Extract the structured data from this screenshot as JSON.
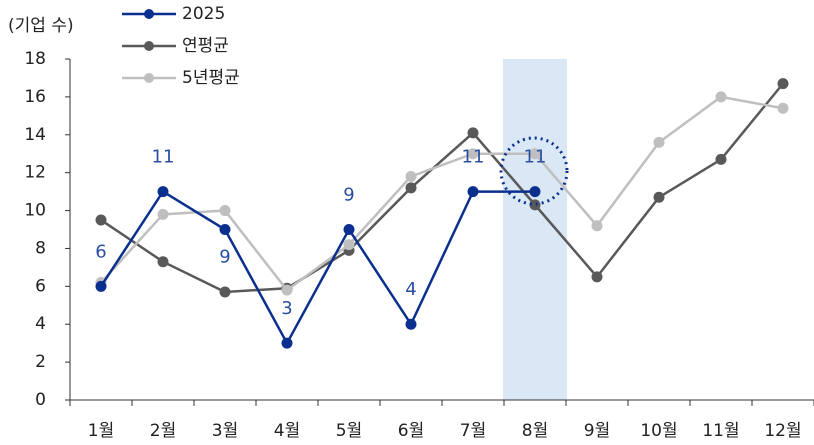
{
  "chart_data": {
    "type": "line",
    "y_label": "(기업 수)",
    "categories": [
      "1월",
      "2월",
      "3월",
      "4월",
      "5월",
      "6월",
      "7월",
      "8월",
      "9월",
      "10월",
      "11월",
      "12월"
    ],
    "series": [
      {
        "name": "2025",
        "color": "#0a2f8f",
        "values": [
          6,
          11,
          9,
          3,
          9,
          4,
          11,
          11,
          null,
          null,
          null,
          null
        ],
        "value_labels": [
          "6",
          "11",
          "9",
          "3",
          "9",
          "4",
          "11",
          "11",
          null,
          null,
          null,
          null
        ]
      },
      {
        "name": "연평균",
        "color": "#595959",
        "values": [
          9.5,
          7.3,
          5.7,
          5.9,
          7.9,
          11.2,
          14.1,
          10.3,
          6.5,
          10.7,
          12.7,
          16.7
        ]
      },
      {
        "name": "5년평균",
        "color": "#bfbfbf",
        "values": [
          6.2,
          9.8,
          10,
          5.8,
          8.2,
          11.8,
          13,
          13,
          9.2,
          13.6,
          16,
          15.4
        ]
      }
    ],
    "ylim": [
      0,
      18
    ],
    "yticks": [
      0,
      2,
      4,
      6,
      8,
      10,
      12,
      14,
      16,
      18
    ],
    "grid": false
  }
}
